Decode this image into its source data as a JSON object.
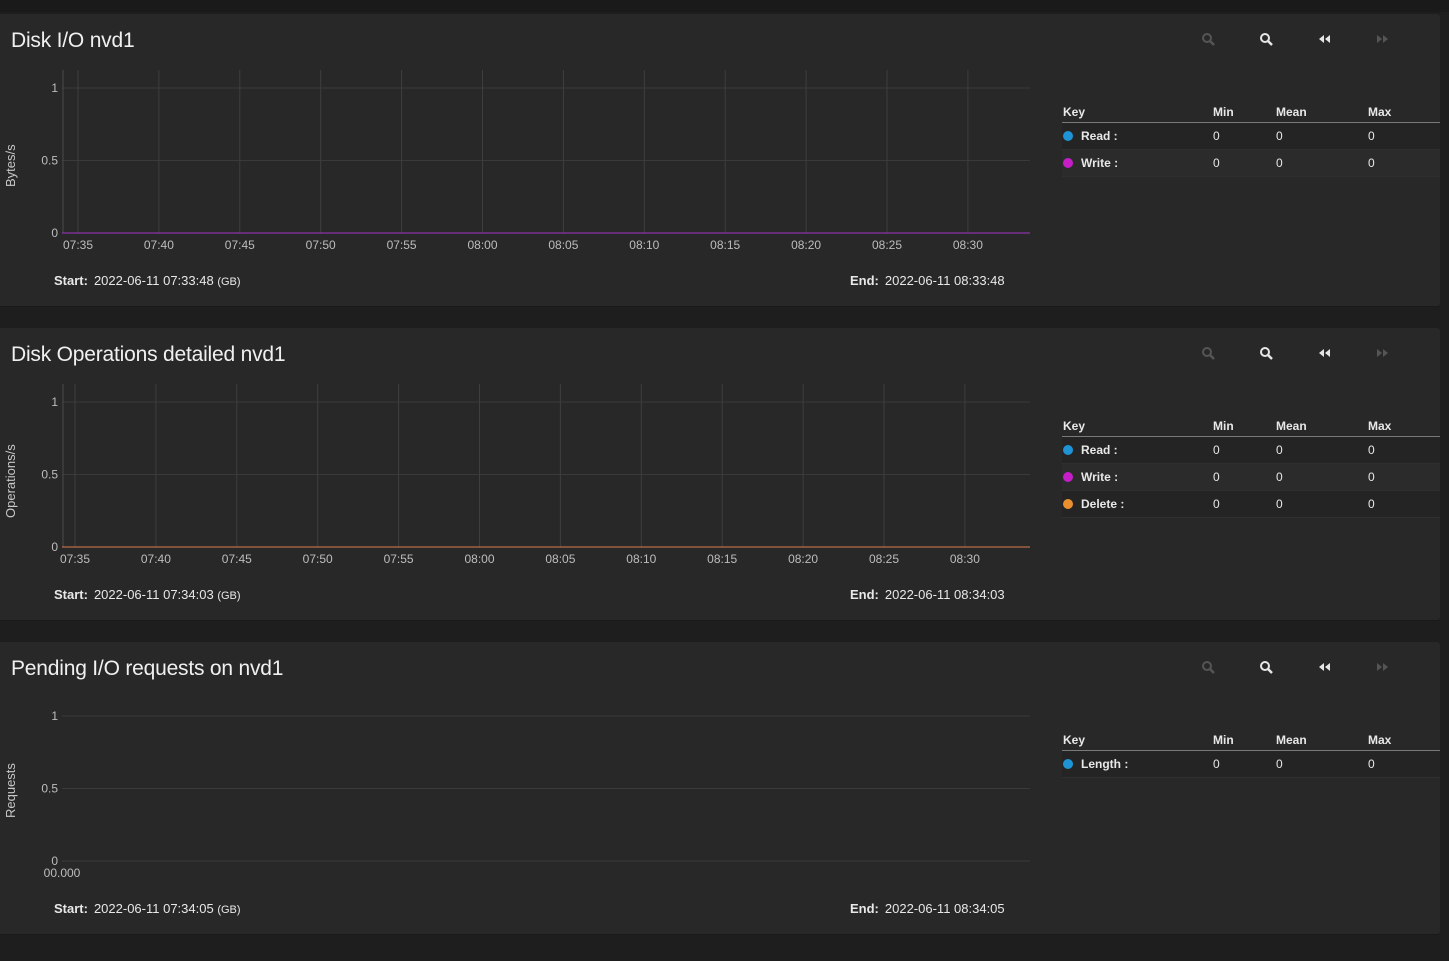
{
  "toolbar_icons": [
    "zoom-out-icon",
    "zoom-in-icon",
    "step-back-icon",
    "step-forward-icon"
  ],
  "colors": {
    "read": "#1e93d6",
    "write": "#c41fc7",
    "delete": "#e98f2f",
    "length": "#1e93d6"
  },
  "panels": [
    {
      "title": "Disk I/O nvd1",
      "ylabel": "Bytes/s",
      "yticks": [
        "1",
        "0.5",
        "0"
      ],
      "xticks": [
        "07:35",
        "07:40",
        "07:45",
        "07:50",
        "07:55",
        "08:00",
        "08:05",
        "08:10",
        "08:15",
        "08:20",
        "08:25",
        "08:30"
      ],
      "legend_header": {
        "key": "Key",
        "min": "Min",
        "mean": "Mean",
        "max": "Max"
      },
      "legend": [
        {
          "label": "Read :",
          "min": "0",
          "mean": "0",
          "max": "0"
        },
        {
          "label": "Write :",
          "min": "0",
          "mean": "0",
          "max": "0"
        }
      ],
      "start_label": "Start:",
      "start_value": "2022-06-11 07:33:48",
      "start_tz": "(GB)",
      "end_label": "End:",
      "end_value": "2022-06-11 08:33:48"
    },
    {
      "title": "Disk Operations detailed nvd1",
      "ylabel": "Operations/s",
      "yticks": [
        "1",
        "0.5",
        "0"
      ],
      "xticks": [
        "07:35",
        "07:40",
        "07:45",
        "07:50",
        "07:55",
        "08:00",
        "08:05",
        "08:10",
        "08:15",
        "08:20",
        "08:25",
        "08:30"
      ],
      "legend_header": {
        "key": "Key",
        "min": "Min",
        "mean": "Mean",
        "max": "Max"
      },
      "legend": [
        {
          "label": "Read :",
          "min": "0",
          "mean": "0",
          "max": "0"
        },
        {
          "label": "Write :",
          "min": "0",
          "mean": "0",
          "max": "0"
        },
        {
          "label": "Delete :",
          "min": "0",
          "mean": "0",
          "max": "0"
        }
      ],
      "start_label": "Start:",
      "start_value": "2022-06-11 07:34:03",
      "start_tz": "(GB)",
      "end_label": "End:",
      "end_value": "2022-06-11 08:34:03"
    },
    {
      "title": "Pending I/O requests on nvd1",
      "ylabel": "Requests",
      "yticks": [
        "1",
        "0.5",
        "0"
      ],
      "xticks": [
        "00.000"
      ],
      "legend_header": {
        "key": "Key",
        "min": "Min",
        "mean": "Mean",
        "max": "Max"
      },
      "legend": [
        {
          "label": "Length :",
          "min": "0",
          "mean": "0",
          "max": "0"
        }
      ],
      "start_label": "Start:",
      "start_value": "2022-06-11 07:34:05",
      "start_tz": "(GB)",
      "end_label": "End:",
      "end_value": "2022-06-11 08:34:05"
    }
  ],
  "chart_data": [
    {
      "type": "line",
      "title": "Disk I/O nvd1",
      "ylabel": "Bytes/s",
      "ylim": [
        0,
        1
      ],
      "x": [
        "07:35",
        "07:40",
        "07:45",
        "07:50",
        "07:55",
        "08:00",
        "08:05",
        "08:10",
        "08:15",
        "08:20",
        "08:25",
        "08:30"
      ],
      "series": [
        {
          "name": "Read",
          "values": [
            0,
            0,
            0,
            0,
            0,
            0,
            0,
            0,
            0,
            0,
            0,
            0
          ]
        },
        {
          "name": "Write",
          "values": [
            0,
            0,
            0,
            0,
            0,
            0,
            0,
            0,
            0,
            0,
            0,
            0
          ]
        }
      ]
    },
    {
      "type": "line",
      "title": "Disk Operations detailed nvd1",
      "ylabel": "Operations/s",
      "ylim": [
        0,
        1
      ],
      "x": [
        "07:35",
        "07:40",
        "07:45",
        "07:50",
        "07:55",
        "08:00",
        "08:05",
        "08:10",
        "08:15",
        "08:20",
        "08:25",
        "08:30"
      ],
      "series": [
        {
          "name": "Read",
          "values": [
            0,
            0,
            0,
            0,
            0,
            0,
            0,
            0,
            0,
            0,
            0,
            0
          ]
        },
        {
          "name": "Write",
          "values": [
            0,
            0,
            0,
            0,
            0,
            0,
            0,
            0,
            0,
            0,
            0,
            0
          ]
        },
        {
          "name": "Delete",
          "values": [
            0,
            0,
            0,
            0,
            0,
            0,
            0,
            0,
            0,
            0,
            0,
            0
          ]
        }
      ]
    },
    {
      "type": "line",
      "title": "Pending I/O requests on nvd1",
      "ylabel": "Requests",
      "ylim": [
        0,
        1
      ],
      "x": [
        "00.000"
      ],
      "series": [
        {
          "name": "Length",
          "values": [
            0
          ]
        }
      ]
    }
  ]
}
